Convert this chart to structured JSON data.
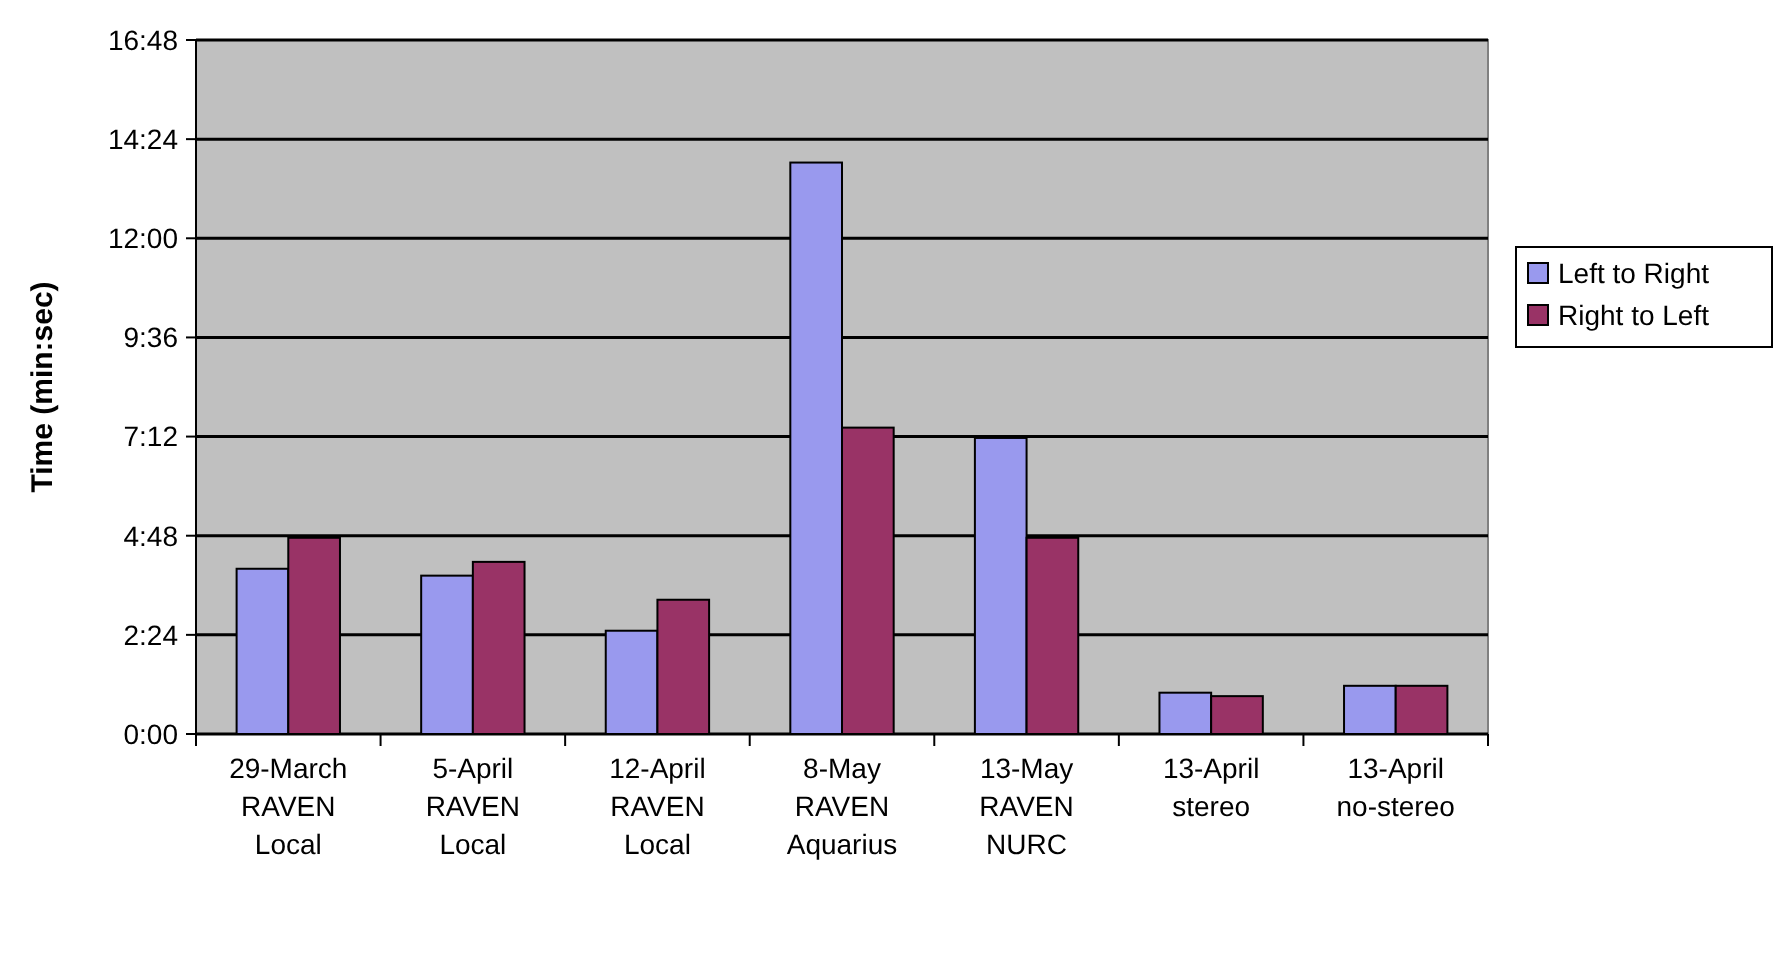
{
  "chart_data": {
    "type": "bar",
    "ylabel": "Time (min:sec)",
    "categories": [
      "29-March\nRAVEN\nLocal",
      "5-April\nRAVEN\nLocal",
      "12-April\nRAVEN\nLocal",
      "8-May\nRAVEN\nAquarius",
      "13-May\nRAVEN\nNURC",
      "13-April\nstereo",
      "13-April\nno-stereo"
    ],
    "series": [
      {
        "name": "Left to Right",
        "color": "#9999ee",
        "values": [
          240,
          230,
          150,
          830,
          430,
          60,
          70
        ]
      },
      {
        "name": "Right to Left",
        "color": "#993366",
        "values": [
          285,
          250,
          195,
          445,
          285,
          55,
          70
        ]
      }
    ],
    "ylim": [
      0,
      1008
    ],
    "yticks": [
      {
        "value": 0,
        "label": "0:00"
      },
      {
        "value": 144,
        "label": "2:24"
      },
      {
        "value": 288,
        "label": "4:48"
      },
      {
        "value": 432,
        "label": "7:12"
      },
      {
        "value": 576,
        "label": "9:36"
      },
      {
        "value": 720,
        "label": "12:00"
      },
      {
        "value": 864,
        "label": "14:24"
      },
      {
        "value": 1008,
        "label": "16:48"
      }
    ],
    "grid": "y",
    "legend": "right"
  }
}
